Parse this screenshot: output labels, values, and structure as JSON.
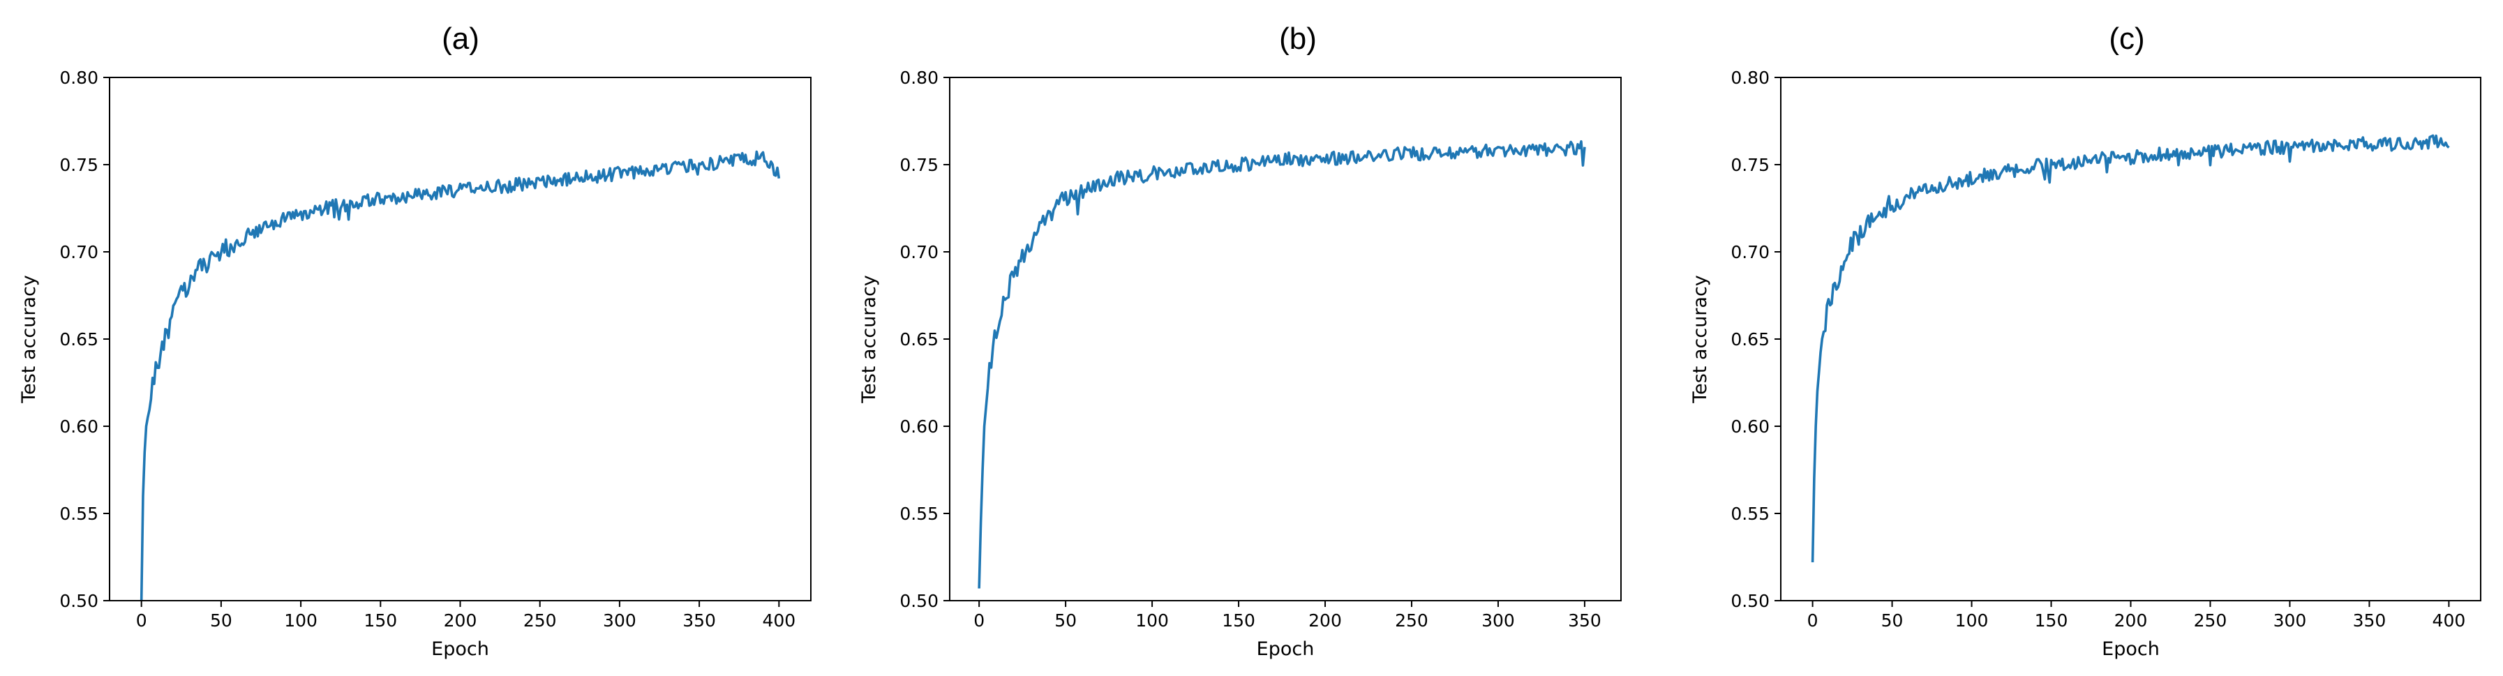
{
  "chart_data": [
    {
      "type": "line",
      "title": "(a)",
      "xlabel": "Epoch",
      "ylabel": "Test accuracy",
      "xlim": [
        -20,
        420
      ],
      "ylim": [
        0.5,
        0.8
      ],
      "xticks": [
        0,
        50,
        100,
        150,
        200,
        250,
        300,
        350,
        400
      ],
      "yticks": [
        0.5,
        0.55,
        0.6,
        0.65,
        0.7,
        0.75,
        0.8
      ],
      "xtick_labels": [
        "0",
        "50",
        "100",
        "150",
        "200",
        "250",
        "300",
        "350",
        "400"
      ],
      "ytick_labels": [
        "0.50",
        "0.55",
        "0.60",
        "0.65",
        "0.70",
        "0.75",
        "0.80"
      ],
      "grid": false,
      "series": [
        {
          "color": "#1f77b4",
          "x": [
            0,
            1,
            2,
            3,
            5,
            8,
            10,
            15,
            20,
            25,
            30,
            40,
            50,
            60,
            70,
            80,
            90,
            100,
            110,
            120,
            130,
            140,
            150,
            160,
            170,
            180,
            190,
            200,
            210,
            220,
            230,
            240,
            250,
            260,
            270,
            280,
            290,
            300,
            310,
            320,
            330,
            340,
            350,
            360,
            370,
            380,
            390,
            395,
            400
          ],
          "y": [
            0.5,
            0.56,
            0.585,
            0.6,
            0.615,
            0.63,
            0.635,
            0.65,
            0.665,
            0.675,
            0.682,
            0.693,
            0.7,
            0.706,
            0.711,
            0.716,
            0.719,
            0.722,
            0.724,
            0.726,
            0.727,
            0.729,
            0.73,
            0.731,
            0.732,
            0.733,
            0.734,
            0.735,
            0.736,
            0.737,
            0.738,
            0.739,
            0.74,
            0.741,
            0.742,
            0.743,
            0.744,
            0.745,
            0.746,
            0.747,
            0.748,
            0.749,
            0.75,
            0.751,
            0.752,
            0.753,
            0.754,
            0.749,
            0.743
          ]
        }
      ]
    },
    {
      "type": "line",
      "title": "(b)",
      "xlabel": "Epoch",
      "ylabel": "Test accuracy",
      "xlim": [
        -17,
        371
      ],
      "ylim": [
        0.5,
        0.8
      ],
      "xticks": [
        0,
        50,
        100,
        150,
        200,
        250,
        300,
        350
      ],
      "yticks": [
        0.5,
        0.55,
        0.6,
        0.65,
        0.7,
        0.75,
        0.8
      ],
      "xtick_labels": [
        "0",
        "50",
        "100",
        "150",
        "200",
        "250",
        "300",
        "350"
      ],
      "ytick_labels": [
        "0.50",
        "0.55",
        "0.60",
        "0.65",
        "0.70",
        "0.75",
        "0.80"
      ],
      "grid": false,
      "series": [
        {
          "color": "#1f77b4",
          "x": [
            0,
            1,
            2,
            3,
            5,
            8,
            10,
            15,
            20,
            25,
            30,
            40,
            50,
            60,
            70,
            80,
            90,
            100,
            110,
            120,
            130,
            140,
            150,
            160,
            170,
            180,
            190,
            200,
            210,
            220,
            230,
            240,
            250,
            260,
            270,
            280,
            290,
            300,
            310,
            320,
            330,
            340,
            345,
            350
          ],
          "y": [
            0.507,
            0.545,
            0.575,
            0.6,
            0.625,
            0.645,
            0.655,
            0.672,
            0.688,
            0.698,
            0.707,
            0.721,
            0.73,
            0.735,
            0.739,
            0.742,
            0.744,
            0.745,
            0.746,
            0.747,
            0.748,
            0.749,
            0.75,
            0.751,
            0.752,
            0.753,
            0.753,
            0.754,
            0.754,
            0.755,
            0.755,
            0.756,
            0.756,
            0.757,
            0.757,
            0.757,
            0.758,
            0.758,
            0.758,
            0.759,
            0.759,
            0.759,
            0.76,
            0.759
          ]
        }
      ]
    },
    {
      "type": "line",
      "title": "(c)",
      "xlabel": "Epoch",
      "ylabel": "Test accuracy",
      "xlim": [
        -20,
        420
      ],
      "ylim": [
        0.5,
        0.8
      ],
      "xticks": [
        0,
        50,
        100,
        150,
        200,
        250,
        300,
        350,
        400
      ],
      "yticks": [
        0.5,
        0.55,
        0.6,
        0.65,
        0.7,
        0.75,
        0.8
      ],
      "xtick_labels": [
        "0",
        "50",
        "100",
        "150",
        "200",
        "250",
        "300",
        "350",
        "400"
      ],
      "ytick_labels": [
        "0.50",
        "0.55",
        "0.60",
        "0.65",
        "0.70",
        "0.75",
        "0.80"
      ],
      "grid": false,
      "series": [
        {
          "color": "#1f77b4",
          "x": [
            0,
            1,
            2,
            3,
            5,
            8,
            10,
            15,
            20,
            25,
            30,
            40,
            50,
            60,
            70,
            80,
            90,
            100,
            110,
            120,
            130,
            140,
            150,
            160,
            170,
            180,
            190,
            200,
            210,
            220,
            230,
            240,
            250,
            260,
            270,
            280,
            290,
            300,
            310,
            320,
            330,
            340,
            350,
            360,
            370,
            380,
            390,
            395,
            400
          ],
          "y": [
            0.522,
            0.57,
            0.6,
            0.62,
            0.643,
            0.66,
            0.668,
            0.683,
            0.695,
            0.704,
            0.711,
            0.721,
            0.728,
            0.732,
            0.735,
            0.738,
            0.74,
            0.742,
            0.744,
            0.746,
            0.747,
            0.749,
            0.75,
            0.751,
            0.752,
            0.753,
            0.754,
            0.754,
            0.755,
            0.756,
            0.756,
            0.757,
            0.758,
            0.758,
            0.759,
            0.759,
            0.76,
            0.76,
            0.76,
            0.761,
            0.761,
            0.761,
            0.762,
            0.762,
            0.762,
            0.763,
            0.763,
            0.764,
            0.762
          ]
        }
      ]
    }
  ]
}
